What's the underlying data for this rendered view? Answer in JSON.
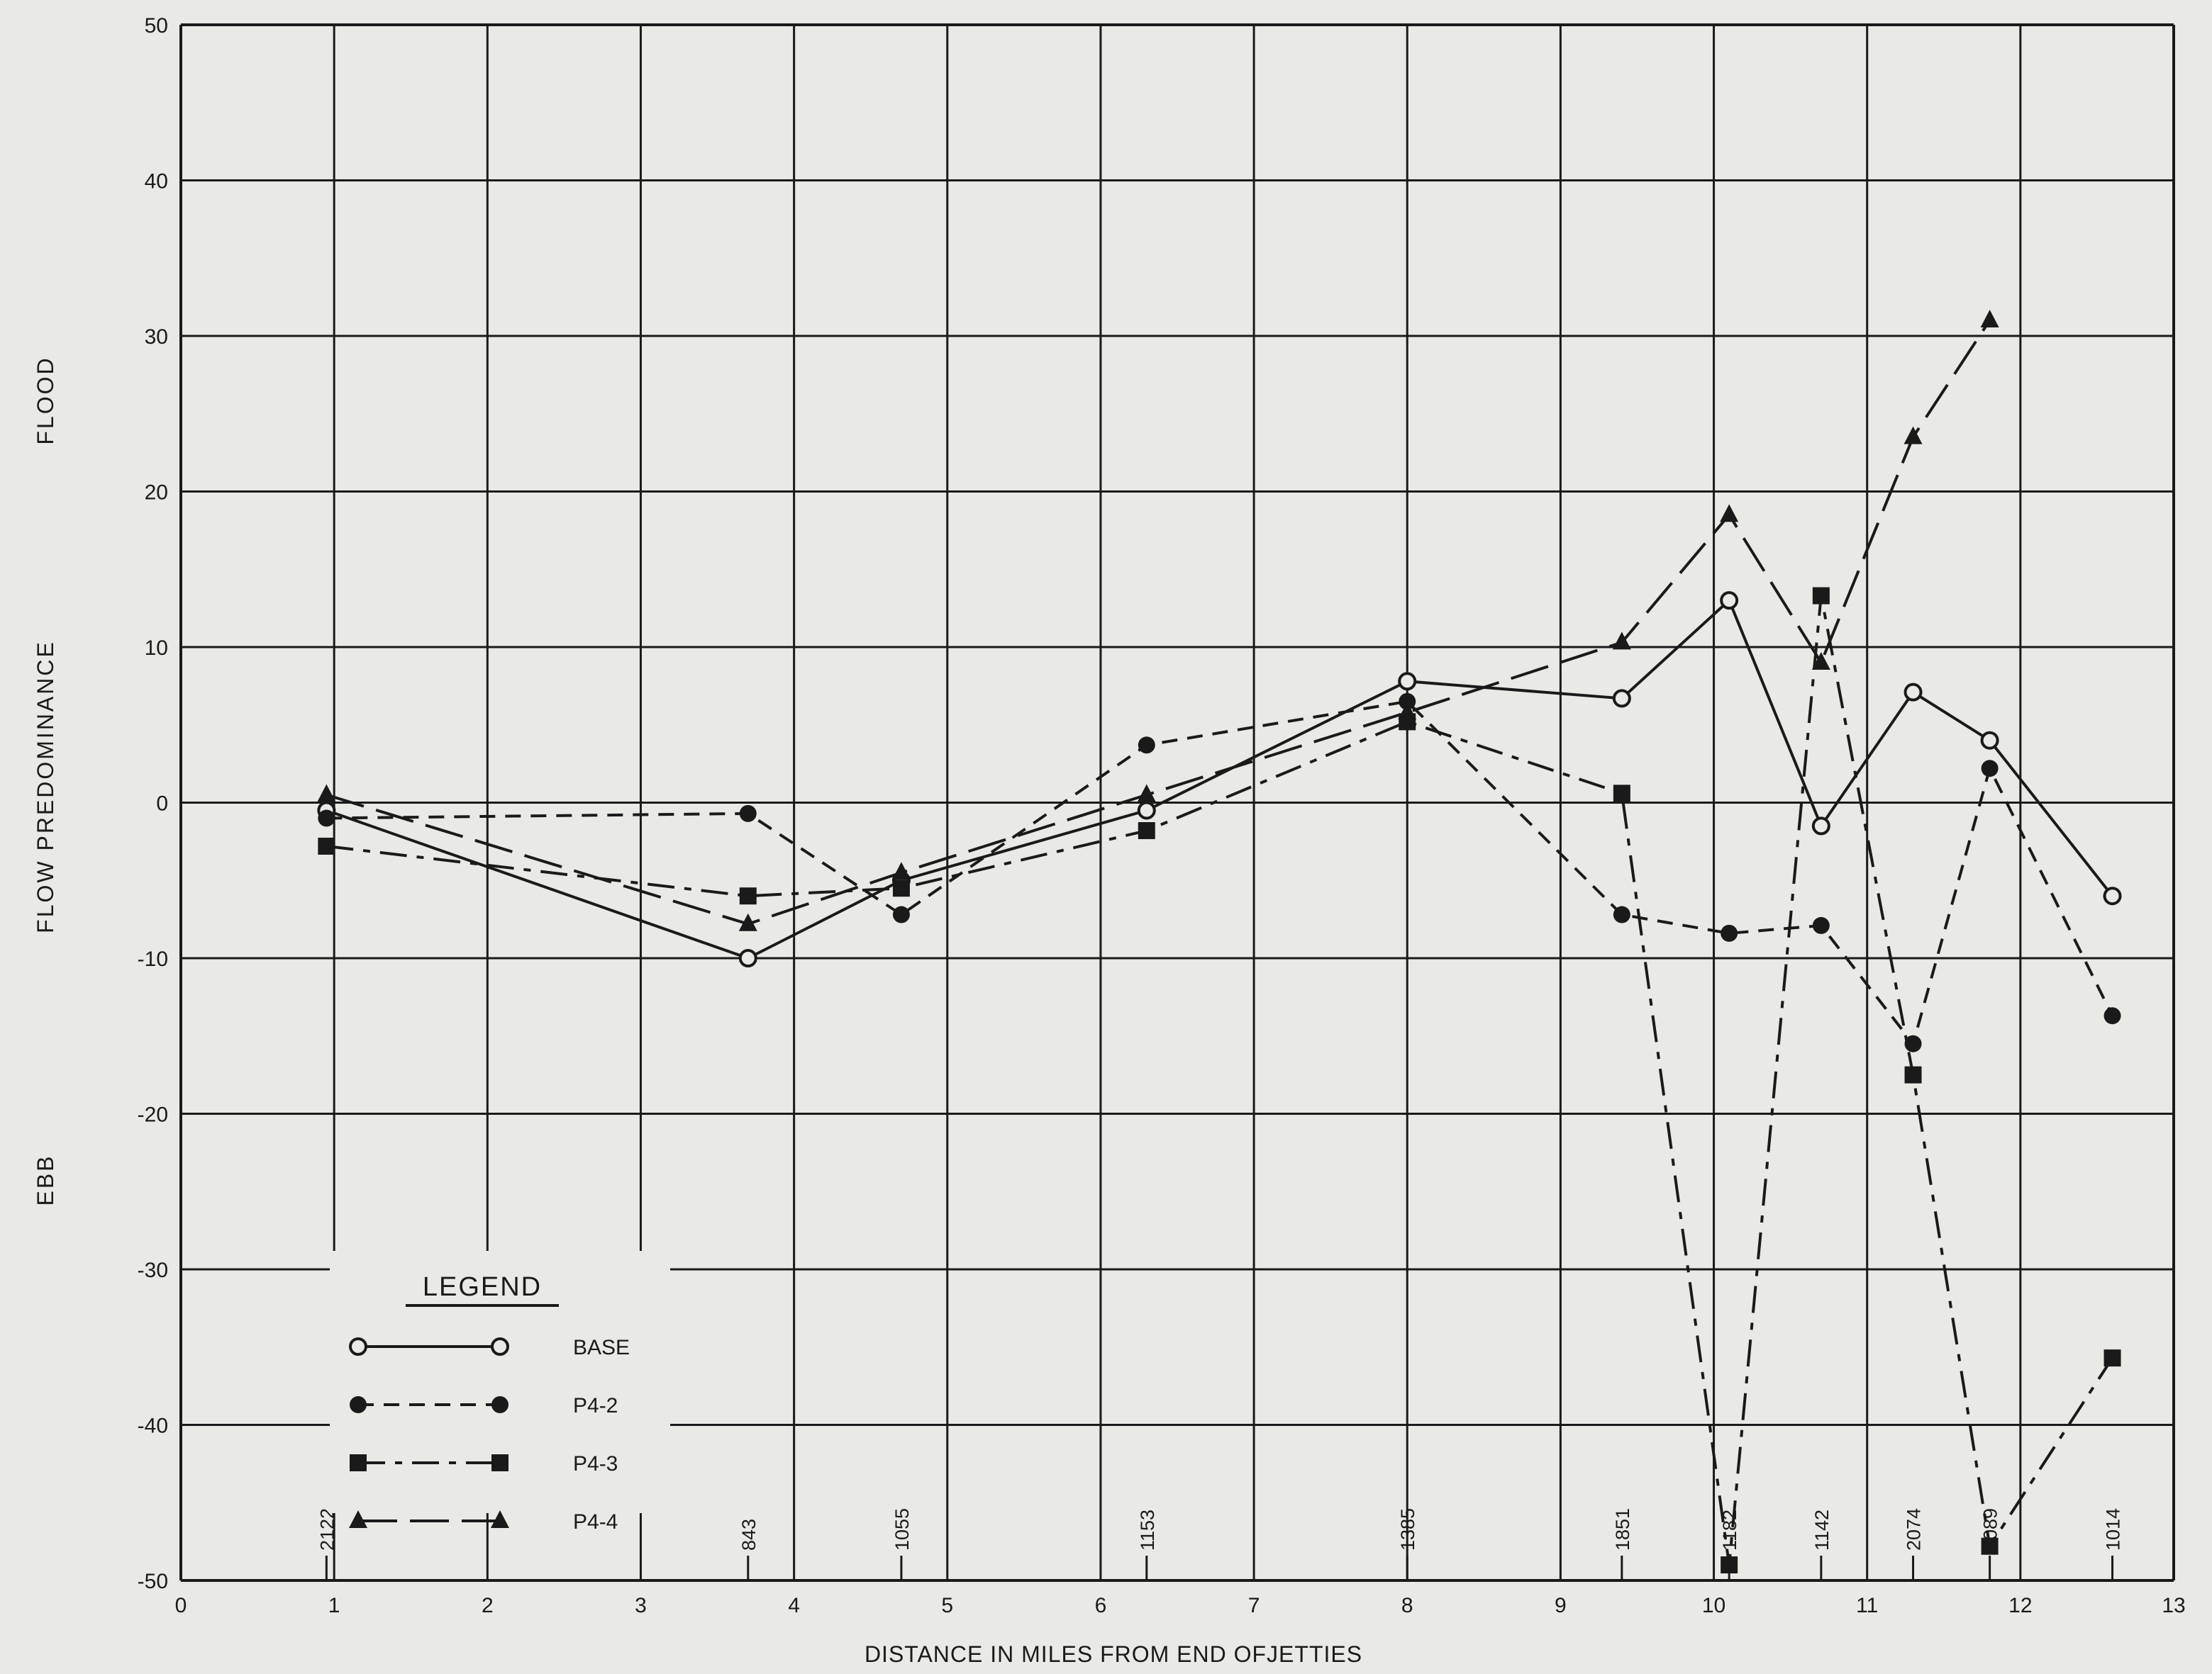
{
  "chart_data": {
    "type": "line",
    "xlabel": "DISTANCE IN MILES FROM END OFJETTIES",
    "ylabel": "FLOW PREDOMINANCE",
    "ylabel_top": "FLOOD",
    "ylabel_bottom": "EBB",
    "xlim": [
      0,
      13
    ],
    "ylim": [
      -50,
      50
    ],
    "x_ticks": [
      "0",
      "1",
      "2",
      "3",
      "4",
      "5",
      "6",
      "7",
      "8",
      "9",
      "10",
      "11",
      "12",
      "13"
    ],
    "y_ticks": [
      "-50",
      "-40",
      "-30",
      "-20",
      "-10",
      "0",
      "10",
      "20",
      "30",
      "40",
      "50"
    ],
    "grid": true,
    "legend": {
      "title": "LEGEND",
      "placement": "bottom-left",
      "entries": [
        "BASE",
        "P4-2",
        "P4-3",
        "P4-4"
      ]
    },
    "stations": [
      {
        "x": 0.95,
        "label": "2122"
      },
      {
        "x": 3.7,
        "label": "843"
      },
      {
        "x": 4.7,
        "label": "1055"
      },
      {
        "x": 6.3,
        "label": "1153"
      },
      {
        "x": 8.0,
        "label": "1385"
      },
      {
        "x": 9.4,
        "label": "1851"
      },
      {
        "x": 10.1,
        "label": "1182"
      },
      {
        "x": 10.7,
        "label": "1142"
      },
      {
        "x": 11.3,
        "label": "2074"
      },
      {
        "x": 11.8,
        "label": "2089"
      },
      {
        "x": 12.6,
        "label": "1014"
      }
    ],
    "series": [
      {
        "name": "BASE",
        "marker": "open-circle",
        "dash": "solid",
        "points": [
          [
            0.95,
            -0.5
          ],
          [
            3.7,
            -10
          ],
          [
            4.7,
            -5
          ],
          [
            6.3,
            -0.5
          ],
          [
            8.0,
            7.8
          ],
          [
            9.4,
            6.7
          ],
          [
            10.1,
            13
          ],
          [
            10.7,
            -1.5
          ],
          [
            11.3,
            7.1
          ],
          [
            11.8,
            4
          ],
          [
            12.6,
            -6
          ]
        ]
      },
      {
        "name": "P4-2",
        "marker": "filled-circle",
        "dash": "short-dash",
        "points": [
          [
            0.95,
            -1
          ],
          [
            3.7,
            -0.7
          ],
          [
            4.7,
            -7.2
          ],
          [
            6.3,
            3.7
          ],
          [
            8.0,
            6.5
          ],
          [
            9.4,
            -7.2
          ],
          [
            10.1,
            -8.4
          ],
          [
            10.7,
            -7.9
          ],
          [
            11.3,
            -15.5
          ],
          [
            11.8,
            2.2
          ],
          [
            12.6,
            -13.7
          ]
        ]
      },
      {
        "name": "P4-3",
        "marker": "filled-square",
        "dash": "dash-dot",
        "points": [
          [
            0.95,
            -2.8
          ],
          [
            3.7,
            -6
          ],
          [
            4.7,
            -5.5
          ],
          [
            6.3,
            -1.8
          ],
          [
            8.0,
            5.2
          ],
          [
            9.4,
            0.6
          ],
          [
            10.1,
            -49
          ],
          [
            10.7,
            13.3
          ],
          [
            11.3,
            -17.5
          ],
          [
            11.8,
            -47.8
          ],
          [
            12.6,
            -35.7
          ]
        ]
      },
      {
        "name": "P4-4",
        "marker": "filled-triangle",
        "dash": "long-dash",
        "points": [
          [
            0.95,
            0.5
          ],
          [
            3.7,
            -7.8
          ],
          [
            4.7,
            -4.5
          ],
          [
            6.3,
            0.5
          ],
          [
            8.0,
            5.8
          ],
          [
            9.4,
            10.3
          ],
          [
            10.1,
            18.5
          ],
          [
            10.7,
            9
          ],
          [
            11.3,
            23.5
          ],
          [
            11.8,
            31
          ]
        ]
      }
    ]
  }
}
